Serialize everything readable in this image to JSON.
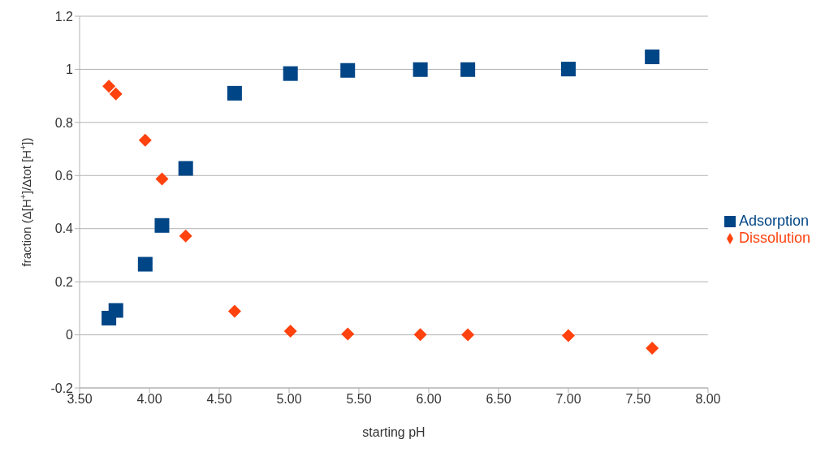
{
  "chart_data": {
    "type": "scatter",
    "xlabel": "starting pH",
    "ylabel": "fraction (Δ[H$^{+}$]/Δtot [H$^{+}$])",
    "xlim": [
      3.5,
      8.0
    ],
    "xticks": [
      {
        "value": 3.5,
        "label": "3.50"
      },
      {
        "value": 4,
        "label": "4.00"
      },
      {
        "value": 4.5,
        "label": "4.50"
      },
      {
        "value": 5,
        "label": "5.00"
      },
      {
        "value": 5.5,
        "label": "5.50"
      },
      {
        "value": 6,
        "label": "6.00"
      },
      {
        "value": 6.5,
        "label": "6.50"
      },
      {
        "value": 7,
        "label": "7.00"
      },
      {
        "value": 7.5,
        "label": "7.50"
      },
      {
        "value": 8,
        "label": "8.00"
      }
    ],
    "ylim": [
      -0.2,
      1.2
    ],
    "yticks": [
      -0.2,
      0,
      0.2,
      0.4,
      0.6,
      0.8,
      1,
      1.2
    ],
    "grid": "y",
    "legend": "right",
    "x": [
      3.71,
      3.76,
      3.97,
      4.09,
      4.26,
      4.61,
      5.01,
      5.42,
      5.94,
      6.28,
      7.0,
      7.6
    ],
    "series": [
      {
        "name": "Adsorption",
        "color": "#004586",
        "marker": "square",
        "values": [
          0.063,
          0.092,
          0.266,
          0.412,
          0.627,
          0.91,
          0.984,
          0.996,
          0.999,
          0.999,
          1.001,
          1.047
        ]
      },
      {
        "name": "Dissolution",
        "color": "#ff420e",
        "marker": "diamond",
        "values": [
          0.936,
          0.907,
          0.733,
          0.587,
          0.372,
          0.089,
          0.014,
          0.003,
          0.001,
          0.0,
          -0.003,
          -0.05
        ]
      }
    ]
  }
}
